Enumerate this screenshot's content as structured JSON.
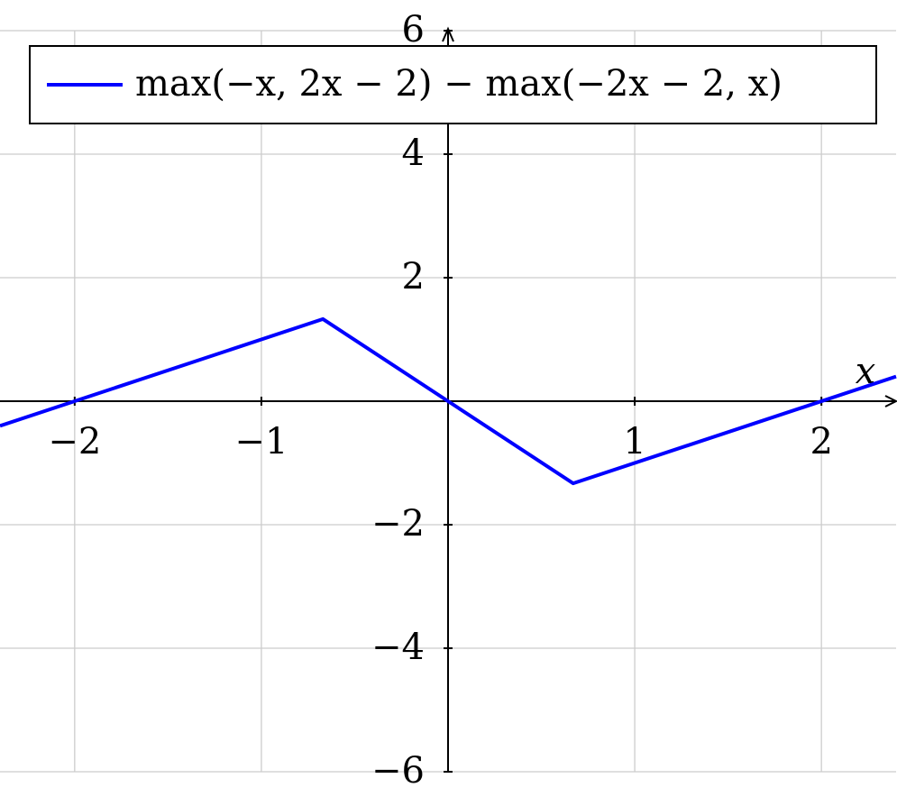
{
  "chart_data": {
    "type": "line",
    "x_label": "x",
    "x": [
      -2.4,
      -0.67,
      0,
      0.67,
      2.4
    ],
    "series": [
      {
        "name": "max(−x, 2x − 2) − max(−2x − 2, x)",
        "color": "#0000ff",
        "values": [
          -0.4,
          1.33,
          0,
          -1.33,
          0.4
        ]
      }
    ],
    "xlim": [
      -2.4,
      2.4
    ],
    "ylim": [
      -6,
      6
    ],
    "xticks": [
      {
        "value": -2,
        "label": "−2"
      },
      {
        "value": -1,
        "label": "−1"
      },
      1,
      2
    ],
    "yticks": [
      {
        "value": -6,
        "label": "−6"
      },
      {
        "value": -4,
        "label": "−4"
      },
      {
        "value": -2,
        "label": "−2"
      },
      2,
      4,
      6
    ],
    "grid": true,
    "legend": "top"
  }
}
